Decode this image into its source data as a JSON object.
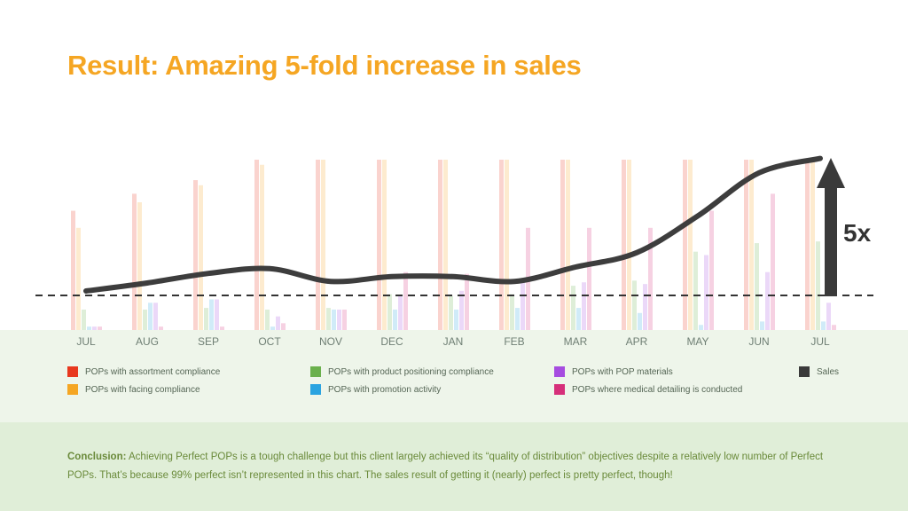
{
  "title": "Result: Amazing 5-fold increase in sales",
  "multiplier_label": "5x",
  "legend": {
    "items": [
      {
        "key": "assortment",
        "label": "POPs with assortment compliance",
        "color": "#e8381e"
      },
      {
        "key": "facing",
        "label": "POPs with facing compliance",
        "color": "#f5a623"
      },
      {
        "key": "positioning",
        "label": "POPs with product positioning compliance",
        "color": "#6ab04c"
      },
      {
        "key": "promotion",
        "label": "POPs with promotion activity",
        "color": "#2aa3e0"
      },
      {
        "key": "materials",
        "label": "POPs with POP materials",
        "color": "#a64ce0"
      },
      {
        "key": "detailing",
        "label": "POPs where medical detailing is conducted",
        "color": "#d62f7a"
      },
      {
        "key": "sales",
        "label": "Sales",
        "color": "#3a3a3a"
      }
    ]
  },
  "conclusion": {
    "lead": "Conclusion:",
    "text": " Achieving Perfect POPs is a tough challenge but this client largely achieved its “quality of distribution” objectives despite a relatively low number of Perfect POPs. That’s because 99% perfect isn’t represented in this chart. The sales result of getting it (nearly) perfect is pretty perfect, though!"
  },
  "chart_data": {
    "type": "bar",
    "title": "Result: Amazing 5-fold increase in sales",
    "categories": [
      "JUL",
      "AUG",
      "SEP",
      "OCT",
      "NOV",
      "DEC",
      "JAN",
      "FEB",
      "MAR",
      "APR",
      "MAY",
      "JUN",
      "JUL"
    ],
    "ylim": [
      0,
      100
    ],
    "series": [
      {
        "name": "POPs with assortment compliance",
        "color": "#e8381e",
        "values": [
          70,
          80,
          88,
          100,
          100,
          100,
          100,
          100,
          100,
          100,
          100,
          100,
          100
        ]
      },
      {
        "name": "POPs with facing compliance",
        "color": "#f5a623",
        "values": [
          60,
          75,
          85,
          97,
          100,
          100,
          100,
          100,
          100,
          100,
          100,
          100,
          100
        ]
      },
      {
        "name": "POPs with product positioning compliance",
        "color": "#6ab04c",
        "values": [
          12,
          12,
          13,
          12,
          13,
          21,
          20,
          21,
          26,
          29,
          46,
          51,
          52
        ]
      },
      {
        "name": "POPs with promotion activity",
        "color": "#2aa3e0",
        "values": [
          2,
          16,
          18,
          2,
          12,
          12,
          12,
          13,
          13,
          10,
          3,
          5,
          5
        ]
      },
      {
        "name": "POPs with POP materials",
        "color": "#a64ce0",
        "values": [
          2,
          16,
          18,
          8,
          12,
          20,
          23,
          28,
          28,
          27,
          44,
          34,
          16
        ]
      },
      {
        "name": "POPs where medical detailing is conducted",
        "color": "#d62f7a",
        "values": [
          2,
          2,
          2,
          4,
          12,
          34,
          33,
          60,
          60,
          60,
          70,
          80,
          3
        ]
      },
      {
        "name": "Sales",
        "type": "line",
        "color": "#3a3a3a",
        "values": [
          5,
          10,
          16,
          19,
          11,
          14,
          14,
          11,
          20,
          29,
          52,
          79,
          88
        ]
      }
    ],
    "baseline_label": "5x"
  }
}
